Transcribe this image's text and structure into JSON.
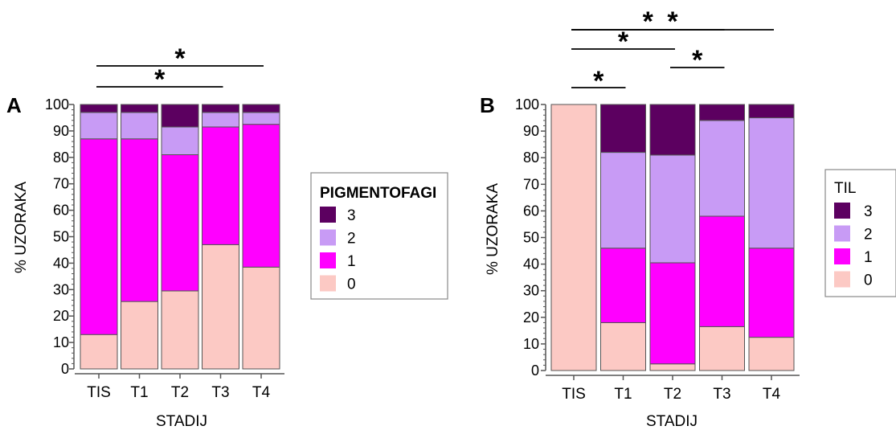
{
  "colors": {
    "level_3": "#5c0060",
    "level_2": "#c89bf5",
    "level_1": "#ff00ff",
    "level_0": "#fcc9c4",
    "bar_outline": "#555555",
    "axis": "#555555"
  },
  "chart_data": [
    {
      "type": "bar",
      "stacked": true,
      "panel_label": "A",
      "categories": [
        "TIS",
        "T1",
        "T2",
        "T3",
        "T4"
      ],
      "series": [
        {
          "name": "0",
          "values": [
            13,
            25.5,
            29.5,
            47,
            38.5
          ]
        },
        {
          "name": "1",
          "values": [
            74,
            61.5,
            51.5,
            44.5,
            54
          ]
        },
        {
          "name": "2",
          "values": [
            10,
            10,
            10.5,
            5.5,
            4.5
          ]
        },
        {
          "name": "3",
          "values": [
            3,
            3,
            8.5,
            3,
            3
          ]
        }
      ],
      "xlabel": "STADIJ",
      "ylabel": "% UZORAKA",
      "ylim": [
        0,
        100
      ],
      "yticks": [
        0,
        10,
        20,
        30,
        40,
        50,
        60,
        70,
        80,
        90,
        100
      ],
      "legend": {
        "title": "PIGMENTOFAGI",
        "entries": [
          "3",
          "2",
          "1",
          "0"
        ],
        "placement": "right"
      },
      "significance": [
        {
          "from": "TIS",
          "to": "T3",
          "label": "*"
        },
        {
          "from": "TIS",
          "to": "T4",
          "label": "*"
        }
      ]
    },
    {
      "type": "bar",
      "stacked": true,
      "panel_label": "B",
      "categories": [
        "TIS",
        "T1",
        "T2",
        "T3",
        "T4"
      ],
      "series": [
        {
          "name": "0",
          "values": [
            100,
            18,
            2.5,
            16.5,
            12.5
          ]
        },
        {
          "name": "1",
          "values": [
            0,
            28,
            38,
            41.5,
            33.5
          ]
        },
        {
          "name": "2",
          "values": [
            0,
            36,
            40.5,
            36,
            49
          ]
        },
        {
          "name": "3",
          "values": [
            0,
            18,
            19,
            6,
            5
          ]
        }
      ],
      "xlabel": "STADIJ",
      "ylabel": "% UZORAKA",
      "ylim": [
        0,
        100
      ],
      "yticks": [
        0,
        10,
        20,
        30,
        40,
        50,
        60,
        70,
        80,
        90,
        100
      ],
      "legend": {
        "title": "TIL",
        "entries": [
          "3",
          "2",
          "1",
          "0"
        ],
        "placement": "right"
      },
      "significance": [
        {
          "from": "TIS",
          "to": "T1",
          "label": "*"
        },
        {
          "from": "T2",
          "to": "T3",
          "label": "*"
        },
        {
          "from": "TIS",
          "to": "T2",
          "label": "*"
        },
        {
          "from": "TIS",
          "to": "T3",
          "label": "*"
        },
        {
          "from": "TIS",
          "to": "T4",
          "label": "*"
        }
      ]
    }
  ]
}
